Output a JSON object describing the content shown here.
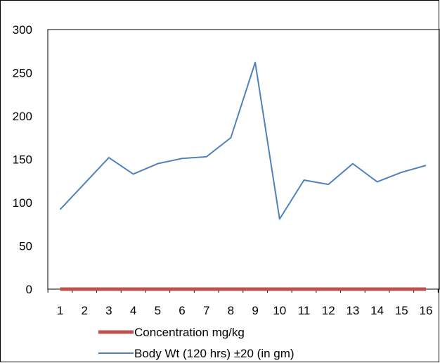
{
  "chart_data": {
    "type": "line",
    "title": "",
    "xlabel": "",
    "ylabel": "",
    "categories": [
      "1",
      "2",
      "3",
      "4",
      "5",
      "6",
      "7",
      "8",
      "9",
      "10",
      "11",
      "12",
      "13",
      "14",
      "15",
      "16"
    ],
    "ylim": [
      0,
      300
    ],
    "yticks": [
      0,
      50,
      100,
      150,
      200,
      250,
      300
    ],
    "grid": false,
    "legend_position": "bottom",
    "series": [
      {
        "name": "Concentration mg/kg",
        "color": "#c0504d",
        "values": [
          0,
          0,
          0,
          0,
          0,
          0,
          0,
          0,
          0,
          0,
          0,
          0,
          0,
          0,
          0,
          0
        ]
      },
      {
        "name": "Body Wt (120 hrs) ±20 (in gm)",
        "color": "#4f81bd",
        "values": [
          92,
          122,
          152,
          133,
          145,
          151,
          153,
          175,
          262,
          81,
          126,
          121,
          145,
          124,
          135,
          143
        ]
      }
    ]
  }
}
